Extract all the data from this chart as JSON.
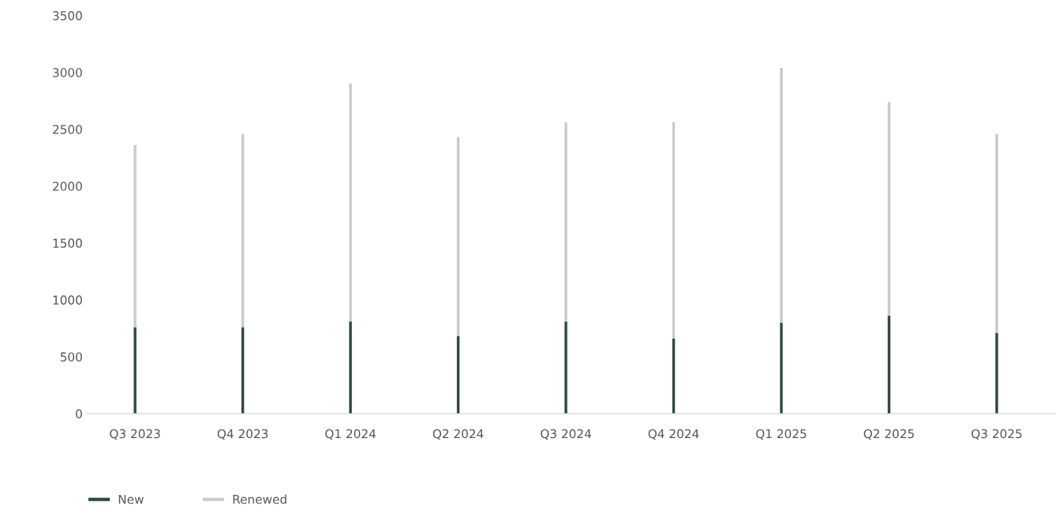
{
  "chart_data": {
    "type": "bar",
    "stacked": true,
    "categories": [
      "Q3 2023",
      "Q4 2023",
      "Q1 2024",
      "Q2 2024",
      "Q3 2024",
      "Q4 2024",
      "Q1 2025",
      "Q2 2025",
      "Q3 2025"
    ],
    "series": [
      {
        "name": "New",
        "color": "#2d4a3a",
        "values": [
          760,
          760,
          810,
          680,
          810,
          660,
          800,
          860,
          710
        ]
      },
      {
        "name": "Renewed",
        "color": "#c8cacd",
        "values": [
          1600,
          1700,
          2090,
          1750,
          1750,
          1900,
          2240,
          1880,
          1750
        ]
      }
    ],
    "ylim": [
      0,
      3500
    ],
    "yticks": [
      0,
      500,
      1000,
      1500,
      2000,
      2500,
      3000,
      3500
    ],
    "grid": false,
    "legend": "bottom left"
  }
}
